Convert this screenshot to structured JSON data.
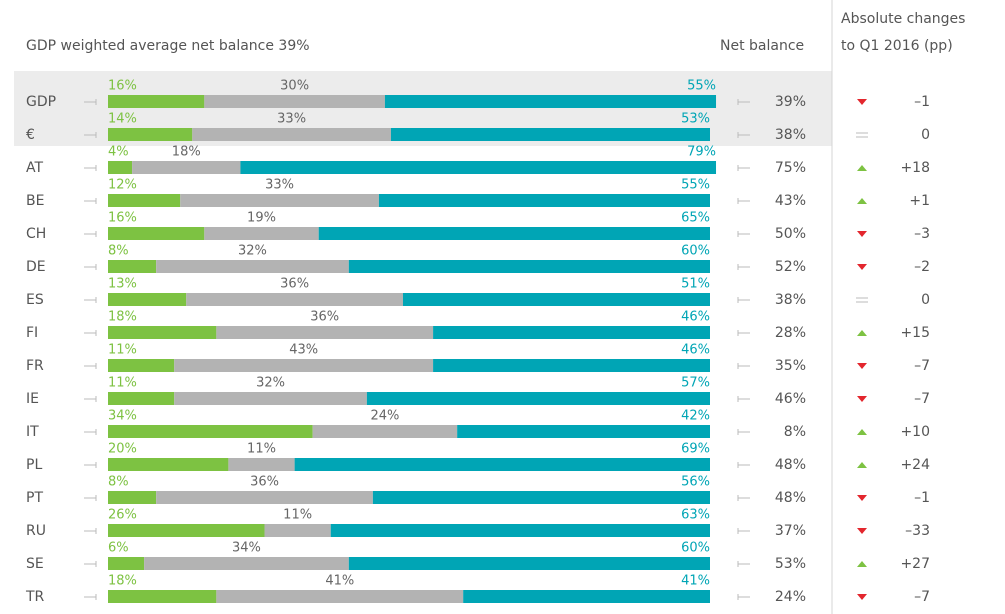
{
  "chart_data": {
    "type": "bar",
    "orientation": "horizontal",
    "stacked": true,
    "title": "GDP weighted average net balance 39%",
    "categories": [
      "GDP",
      "€",
      "AT",
      "BE",
      "CH",
      "DE",
      "ES",
      "FI",
      "FR",
      "IE",
      "IT",
      "PL",
      "PT",
      "RU",
      "SE",
      "TR"
    ],
    "xlim": [
      0,
      100
    ],
    "series": [
      {
        "color": "#7dc242",
        "values": [
          16,
          14,
          4,
          12,
          16,
          8,
          13,
          18,
          11,
          11,
          34,
          20,
          8,
          26,
          6,
          18
        ],
        "value_labels": [
          "16%",
          "14%",
          "4%",
          "12%",
          "16%",
          "8%",
          "13%",
          "18%",
          "11%",
          "11%",
          "34%",
          "20%",
          "8%",
          "26%",
          "6%",
          "18%"
        ]
      },
      {
        "color": "#b3b3b3",
        "values": [
          30,
          33,
          18,
          33,
          19,
          32,
          36,
          36,
          43,
          32,
          24,
          11,
          36,
          11,
          34,
          41
        ],
        "value_labels": [
          "30%",
          "33%",
          "18%",
          "33%",
          "19%",
          "32%",
          "36%",
          "36%",
          "43%",
          "32%",
          "24%",
          "11%",
          "36%",
          "11%",
          "34%",
          "41%"
        ]
      },
      {
        "color": "#00a5b5",
        "values": [
          55,
          53,
          79,
          55,
          65,
          60,
          51,
          46,
          46,
          57,
          42,
          69,
          56,
          63,
          60,
          41
        ],
        "value_labels": [
          "55%",
          "53%",
          "79%",
          "55%",
          "65%",
          "60%",
          "51%",
          "46%",
          "46%",
          "57%",
          "42%",
          "69%",
          "56%",
          "63%",
          "60%",
          "41%"
        ]
      }
    ],
    "net_balance": {
      "title": "Net balance",
      "values": [
        39,
        38,
        75,
        43,
        50,
        52,
        38,
        28,
        35,
        46,
        8,
        48,
        48,
        37,
        53,
        24
      ],
      "value_labels": [
        "39%",
        "38%",
        "75%",
        "43%",
        "50%",
        "52%",
        "38%",
        "28%",
        "35%",
        "46%",
        "8%",
        "48%",
        "48%",
        "37%",
        "53%",
        "24%"
      ]
    },
    "change": {
      "title": [
        "Absolute changes",
        "to Q1 2016 (pp)"
      ],
      "up_color": "#7dc242",
      "down_color": "#e3262d",
      "values": [
        -1,
        0,
        18,
        1,
        -3,
        -2,
        0,
        15,
        -7,
        -7,
        10,
        24,
        -1,
        -33,
        27,
        -7
      ],
      "value_labels": [
        "–1",
        "0",
        "+18",
        "+1",
        "–3",
        "–2",
        "0",
        "+15",
        "–7",
        "–7",
        "+10",
        "+24",
        "–1",
        "–33",
        "+27",
        "–7"
      ]
    }
  }
}
